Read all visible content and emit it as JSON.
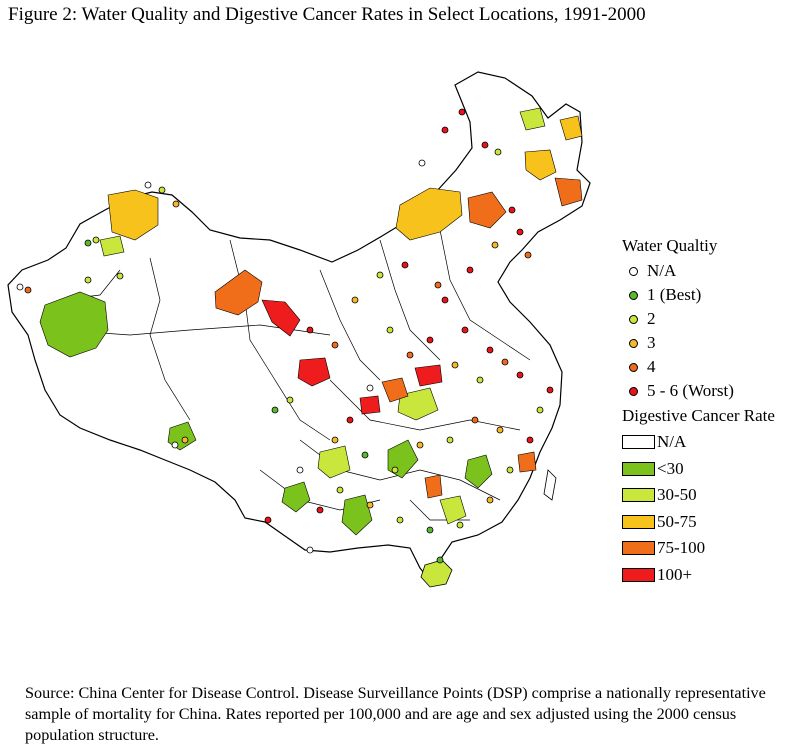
{
  "title": "Figure 2: Water Quality and Digestive Cancer Rates in Select Locations, 1991-2000",
  "legend": {
    "water_title": "Water Qualtiy",
    "water_items": [
      {
        "label": "N/A",
        "color": "#ffffff"
      },
      {
        "label": "1 (Best)",
        "color": "#5cb82e"
      },
      {
        "label": "2",
        "color": "#c8e63c"
      },
      {
        "label": "3",
        "color": "#f5b82a"
      },
      {
        "label": "4",
        "color": "#ee6a1c"
      },
      {
        "label": "5 - 6 (Worst)",
        "color": "#e8141c"
      }
    ],
    "cancer_title": "Digestive Cancer Rate",
    "cancer_items": [
      {
        "label": "N/A",
        "color": "#ffffff"
      },
      {
        "label": "<30",
        "color": "#7cc21c"
      },
      {
        "label": "30-50",
        "color": "#c8e63c"
      },
      {
        "label": "50-75",
        "color": "#f8c21c"
      },
      {
        "label": "75-100",
        "color": "#f06e1a"
      },
      {
        "label": "100+",
        "color": "#ee1c1c"
      }
    ]
  },
  "source": "Source: China Center for Disease Control. Disease Surveillance Points (DSP) comprise a nationally representative sample of mortality for China.  Rates reported per 100,000 and are age and sex adjusted using the 2000 census population structure."
}
